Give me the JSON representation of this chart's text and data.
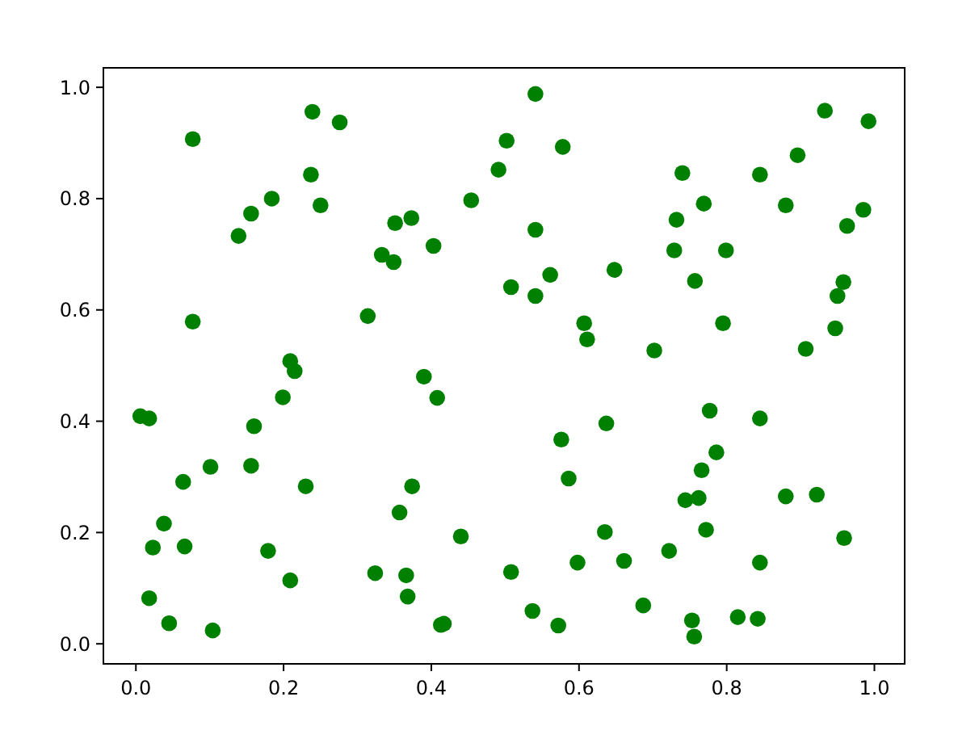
{
  "chart_data": {
    "type": "scatter",
    "color": "#008000",
    "marker": "circle",
    "x": [
      0.239,
      0.276,
      0.077,
      0.237,
      0.184,
      0.25,
      0.156,
      0.139,
      0.333,
      0.077,
      0.314,
      0.209,
      0.215,
      0.541,
      0.502,
      0.578,
      0.491,
      0.454,
      0.373,
      0.351,
      0.541,
      0.403,
      0.349,
      0.648,
      0.561,
      0.508,
      0.541,
      0.607,
      0.611,
      0.39,
      0.933,
      0.992,
      0.896,
      0.74,
      0.845,
      0.769,
      0.88,
      0.985,
      0.732,
      0.963,
      0.729,
      0.799,
      0.757,
      0.958,
      0.95,
      0.795,
      0.947,
      0.702,
      0.907,
      0.199,
      0.006,
      0.018,
      0.16,
      0.101,
      0.156,
      0.064,
      0.23,
      0.038,
      0.023,
      0.066,
      0.179,
      0.209,
      0.324,
      0.018,
      0.045,
      0.104,
      0.408,
      0.637,
      0.576,
      0.374,
      0.586,
      0.357,
      0.44,
      0.635,
      0.366,
      0.508,
      0.598,
      0.661,
      0.368,
      0.413,
      0.417,
      0.537,
      0.572,
      0.687,
      0.777,
      0.845,
      0.786,
      0.766,
      0.744,
      0.762,
      0.88,
      0.922,
      0.772,
      0.959,
      0.722,
      0.845,
      0.815,
      0.842,
      0.753,
      0.756
    ],
    "values": [
      0.956,
      0.937,
      0.907,
      0.843,
      0.8,
      0.788,
      0.773,
      0.733,
      0.699,
      0.579,
      0.589,
      0.508,
      0.49,
      0.988,
      0.904,
      0.893,
      0.852,
      0.797,
      0.765,
      0.756,
      0.744,
      0.715,
      0.686,
      0.672,
      0.663,
      0.641,
      0.625,
      0.576,
      0.547,
      0.48,
      0.958,
      0.939,
      0.878,
      0.846,
      0.843,
      0.791,
      0.788,
      0.78,
      0.762,
      0.751,
      0.707,
      0.707,
      0.652,
      0.65,
      0.625,
      0.576,
      0.567,
      0.527,
      0.53,
      0.443,
      0.409,
      0.405,
      0.391,
      0.318,
      0.32,
      0.291,
      0.283,
      0.216,
      0.173,
      0.175,
      0.167,
      0.114,
      0.127,
      0.082,
      0.037,
      0.024,
      0.442,
      0.396,
      0.367,
      0.283,
      0.297,
      0.236,
      0.193,
      0.201,
      0.123,
      0.129,
      0.146,
      0.149,
      0.085,
      0.034,
      0.036,
      0.059,
      0.033,
      0.069,
      0.419,
      0.405,
      0.344,
      0.312,
      0.258,
      0.262,
      0.265,
      0.268,
      0.205,
      0.19,
      0.167,
      0.146,
      0.048,
      0.045,
      0.042,
      0.013
    ],
    "xlim": [
      -0.044,
      1.041
    ],
    "ylim": [
      -0.036,
      1.035
    ],
    "xticks": [
      {
        "value": 0,
        "label": "0.0"
      },
      {
        "value": 0.2,
        "label": "0.2"
      },
      {
        "value": 0.4,
        "label": "0.4"
      },
      {
        "value": 0.6,
        "label": "0.6"
      },
      {
        "value": 0.8,
        "label": "0.8"
      },
      {
        "value": 1,
        "label": "1.0"
      }
    ],
    "yticks": [
      {
        "value": 0,
        "label": "0.0"
      },
      {
        "value": 0.2,
        "label": "0.2"
      },
      {
        "value": 0.4,
        "label": "0.4"
      },
      {
        "value": 0.6,
        "label": "0.6"
      },
      {
        "value": 0.8,
        "label": "0.8"
      },
      {
        "value": 1,
        "label": "1.0"
      }
    ]
  }
}
